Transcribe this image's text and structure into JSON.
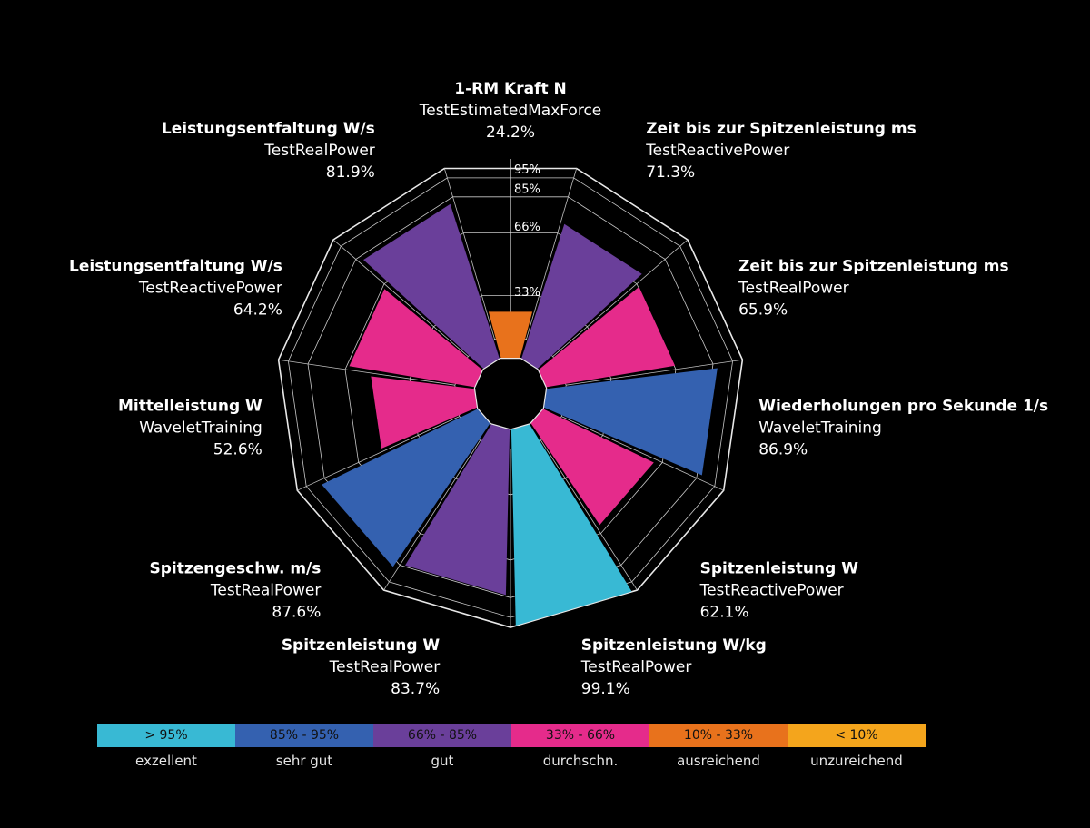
{
  "chart_data": {
    "type": "radial-bar",
    "rings": [
      {
        "value": 95,
        "label": "95%"
      },
      {
        "value": 85,
        "label": "85%"
      },
      {
        "value": 66,
        "label": "66%"
      },
      {
        "value": 33,
        "label": "33%"
      }
    ],
    "categories": [
      {
        "title": "1-RM Kraft N",
        "test": "TestEstimatedMaxForce",
        "value": 24.2,
        "value_label": "24.2%",
        "color": "#e8721c"
      },
      {
        "title": "Zeit bis zur Spitzenleistung ms",
        "test": "TestReactivePower",
        "value": 71.3,
        "value_label": "71.3%",
        "color": "#6a3f9a"
      },
      {
        "title": "Zeit bis zur Spitzenleistung ms",
        "test": "TestRealPower",
        "value": 65.9,
        "value_label": "65.9%",
        "color": "#e52b8b"
      },
      {
        "title": "Wiederholungen pro Sekunde 1/s",
        "test": "WaveletTraining",
        "value": 86.9,
        "value_label": "86.9%",
        "color": "#3461b0"
      },
      {
        "title": "Spitzenleistung W",
        "test": "TestReactivePower",
        "value": 62.1,
        "value_label": "62.1%",
        "color": "#e52b8b"
      },
      {
        "title": "Spitzenleistung W/kg",
        "test": "TestRealPower",
        "value": 99.1,
        "value_label": "99.1%",
        "color": "#38b9d4"
      },
      {
        "title": "Spitzenleistung W",
        "test": "TestRealPower",
        "value": 83.7,
        "value_label": "83.7%",
        "color": "#6a3f9a"
      },
      {
        "title": "Spitzengeschw. m/s",
        "test": "TestRealPower",
        "value": 87.6,
        "value_label": "87.6%",
        "color": "#3461b0"
      },
      {
        "title": "Mittelleistung W",
        "test": "WaveletTraining",
        "value": 52.6,
        "value_label": "52.6%",
        "color": "#e52b8b"
      },
      {
        "title": "Leistungsentfaltung W/s",
        "test": "TestReactivePower",
        "value": 64.2,
        "value_label": "64.2%",
        "color": "#e52b8b"
      },
      {
        "title": "Leistungsentfaltung W/s",
        "test": "TestRealPower",
        "value": 81.9,
        "value_label": "81.9%",
        "color": "#6a3f9a"
      }
    ],
    "legend": [
      {
        "range": "> 95%",
        "label": "exzellent",
        "color": "#38b9d4"
      },
      {
        "range": "85% - 95%",
        "label": "sehr gut",
        "color": "#3461b0"
      },
      {
        "range": "66% - 85%",
        "label": "gut",
        "color": "#6a3f9a"
      },
      {
        "range": "33% - 66%",
        "label": "durchschn.",
        "color": "#e52b8b"
      },
      {
        "range": "10% - 33%",
        "label": "ausreichend",
        "color": "#e8721c"
      },
      {
        "range": "< 10%",
        "label": "unzureichend",
        "color": "#f4a51c"
      }
    ]
  }
}
